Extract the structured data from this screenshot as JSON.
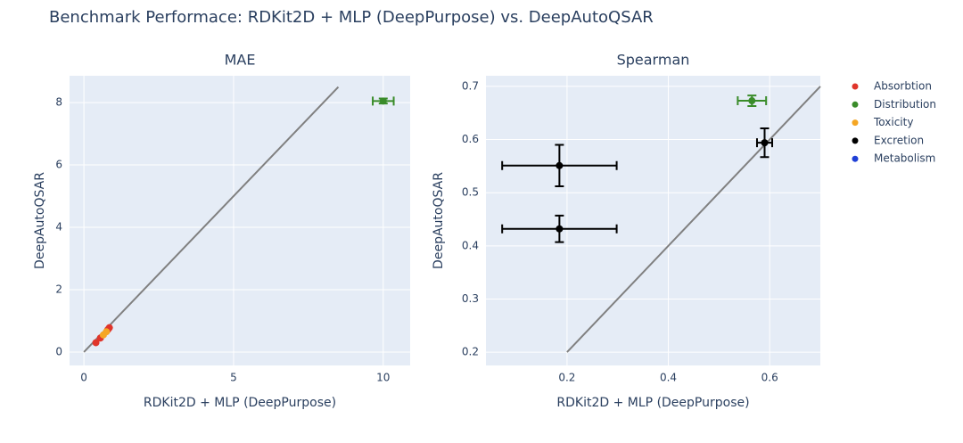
{
  "title": "Benchmark Performace: RDKit2D + MLP (DeepPurpose) vs. DeepAutoQSAR",
  "chart_data": [
    {
      "type": "scatter",
      "title": "MAE",
      "x_label": "RDKit2D + MLP (DeepPurpose)",
      "y_label": "DeepAutoQSAR",
      "xlim": [
        -0.48,
        10.9
      ],
      "ylim": [
        -0.43,
        8.86
      ],
      "xticks": [
        0,
        5,
        10
      ],
      "yticks": [
        0,
        2,
        4,
        6,
        8
      ],
      "grid": true,
      "legend": "right",
      "reference_line": {
        "x": [
          0,
          8.5
        ],
        "y": [
          0,
          8.5
        ],
        "color": "#808080"
      },
      "series": [
        {
          "name": "Absorbtion",
          "color": "#e0352b",
          "x": [
            0.4,
            0.55,
            0.8,
            0.85
          ],
          "y": [
            0.3,
            0.45,
            0.72,
            0.78
          ]
        },
        {
          "name": "Distribution",
          "color": "#3a8c2a",
          "x": [
            10
          ],
          "y": [
            8.05
          ],
          "x_error": [
            0.35
          ],
          "y_error": [
            0.08
          ]
        },
        {
          "name": "Toxicity",
          "color": "#f5a623",
          "x": [
            0.65,
            0.75
          ],
          "y": [
            0.55,
            0.65
          ]
        },
        {
          "name": "Excretion",
          "color": "#000000",
          "x": [],
          "y": []
        },
        {
          "name": "Metabolism",
          "color": "#1f3fd6",
          "x": [],
          "y": []
        }
      ]
    },
    {
      "type": "scatter",
      "title": "Spearman",
      "x_label": "RDKit2D + MLP (DeepPurpose)",
      "y_label": "DeepAutoQSAR",
      "xlim": [
        0.04,
        0.7
      ],
      "ylim": [
        0.175,
        0.72
      ],
      "xticks": [
        0.2,
        0.4,
        0.6
      ],
      "yticks": [
        0.2,
        0.3,
        0.4,
        0.5,
        0.6,
        0.7
      ],
      "grid": true,
      "reference_line": {
        "x": [
          0.2,
          0.7
        ],
        "y": [
          0.2,
          0.7
        ],
        "color": "#808080"
      },
      "series": [
        {
          "name": "Distribution",
          "color": "#3a8c2a",
          "x": [
            0.565
          ],
          "y": [
            0.673
          ],
          "x_error": [
            0.028
          ],
          "y_error": [
            0.01
          ]
        },
        {
          "name": "Excretion",
          "color": "#000000",
          "x": [
            0.185,
            0.185,
            0.59
          ],
          "y": [
            0.551,
            0.432,
            0.594
          ],
          "x_error": [
            0.113,
            0.113,
            0.015
          ],
          "y_error": [
            0.039,
            0.025,
            0.027
          ]
        }
      ]
    }
  ]
}
